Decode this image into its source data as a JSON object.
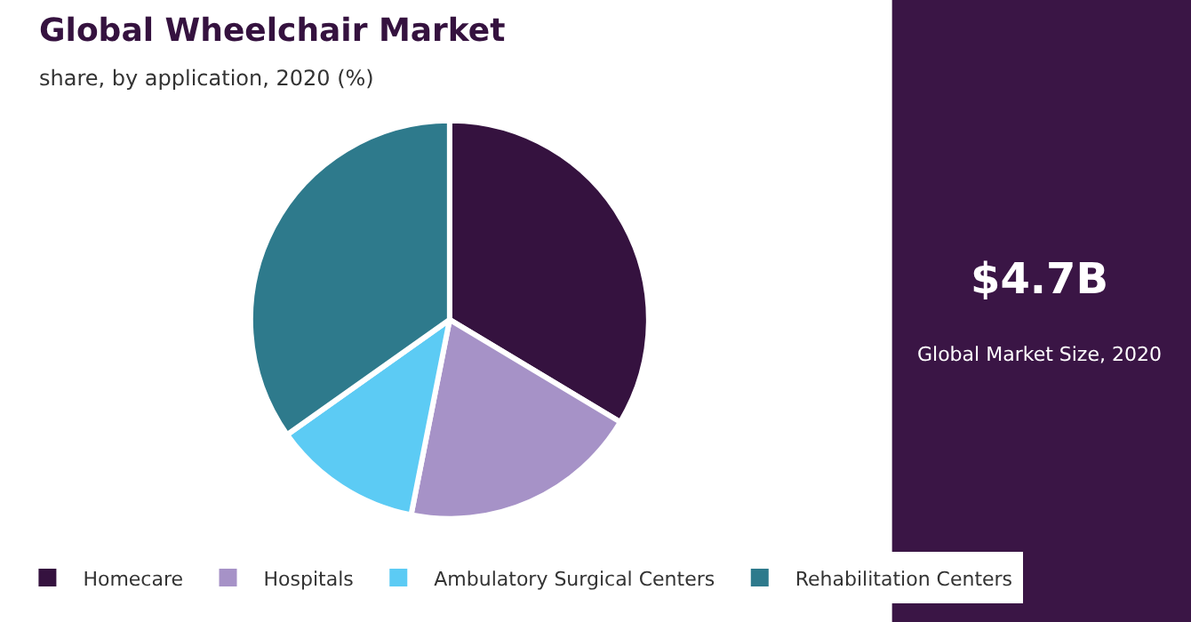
{
  "chart_data": {
    "type": "pie",
    "title": "Global Wheelchair Market",
    "subtitle": "share, by application, 2020 (%)",
    "categories": [
      "Homecare",
      "Hospitals",
      "Ambulatory Surgical Centers",
      "Rehabilitation Centers"
    ],
    "values": [
      33.6,
      19.5,
      12.1,
      34.8
    ],
    "colors": [
      "#35123f",
      "#a692c7",
      "#5ccbf4",
      "#2e7a8c"
    ],
    "annotations": [
      "$4.7B",
      "Global Market Size, 2020"
    ],
    "legend": "bottom"
  }
}
